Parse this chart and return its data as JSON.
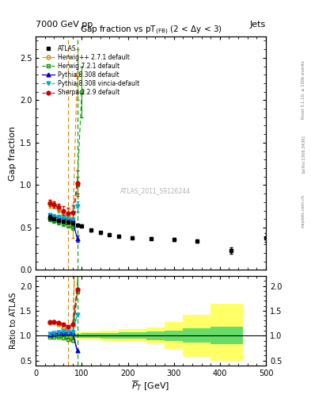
{
  "title": "Gap fraction vs pT",
  "header_left": "7000 GeV pp",
  "header_right": "Jets",
  "ylabel_main": "Gap fraction",
  "ylabel_ratio": "Ratio to ATLAS",
  "xlabel": "$\\overline{P}_T$ [GeV]",
  "watermark": "ATLAS_2011_S9126244",
  "rivet_text": "Rivet 3.1.10, ≥ 100k events",
  "arxiv_text": "[arXiv:1306.3436]",
  "mcplots_text": "mcplots.cern.ch",
  "atlas_x": [
    30,
    40,
    50,
    60,
    70,
    80,
    90,
    100,
    120,
    140,
    160,
    180,
    210,
    250,
    300,
    350,
    425,
    500
  ],
  "atlas_y": [
    0.62,
    0.6,
    0.585,
    0.57,
    0.565,
    0.555,
    0.53,
    0.52,
    0.47,
    0.44,
    0.42,
    0.4,
    0.38,
    0.37,
    0.36,
    0.34,
    0.23,
    0.38
  ],
  "atlas_yerr": [
    0.025,
    0.02,
    0.02,
    0.015,
    0.015,
    0.015,
    0.015,
    0.015,
    0.015,
    0.015,
    0.015,
    0.015,
    0.015,
    0.015,
    0.015,
    0.015,
    0.04,
    0.05
  ],
  "herwig271_x": [
    30,
    40,
    50,
    60,
    70,
    80,
    90
  ],
  "herwig271_y": [
    0.78,
    0.77,
    0.72,
    0.65,
    0.63,
    0.5,
    2.3
  ],
  "herwig271_yerr": [
    0.05,
    0.04,
    0.04,
    0.04,
    0.08,
    0.12,
    0.3
  ],
  "herwig271_color": "#cc8800",
  "herwig721_x": [
    30,
    40,
    50,
    60,
    70,
    80,
    90,
    100
  ],
  "herwig721_y": [
    0.605,
    0.585,
    0.565,
    0.545,
    0.525,
    0.505,
    1.0,
    2.1
  ],
  "herwig721_yerr": [
    0.03,
    0.03,
    0.03,
    0.03,
    0.03,
    0.03,
    0.1,
    0.3
  ],
  "herwig721_color": "#009900",
  "pythia8308_x": [
    30,
    40,
    50,
    60,
    70,
    80,
    90
  ],
  "pythia8308_y": [
    0.635,
    0.625,
    0.615,
    0.605,
    0.595,
    0.59,
    0.37
  ],
  "pythia8308_yerr": [
    0.02,
    0.02,
    0.02,
    0.02,
    0.02,
    0.02,
    0.04
  ],
  "pythia8308_color": "#0000cc",
  "pythia8308v_x": [
    30,
    40,
    50,
    60,
    70,
    80,
    90
  ],
  "pythia8308v_y": [
    0.645,
    0.635,
    0.625,
    0.615,
    0.605,
    0.595,
    0.75
  ],
  "pythia8308v_yerr": [
    0.02,
    0.02,
    0.02,
    0.02,
    0.02,
    0.02,
    0.06
  ],
  "pythia8308v_color": "#00aacc",
  "sherpa229_x": [
    30,
    40,
    50,
    60,
    70,
    80,
    90
  ],
  "sherpa229_y": [
    0.79,
    0.77,
    0.74,
    0.7,
    0.67,
    0.68,
    1.02
  ],
  "sherpa229_yerr": [
    0.04,
    0.04,
    0.04,
    0.05,
    0.06,
    0.08,
    0.15
  ],
  "sherpa229_color": "#cc0000",
  "vline_herwig271": 70,
  "vline_herwig721": 90,
  "ratio_yellow_edges": [
    30,
    100,
    140,
    180,
    240,
    280,
    320,
    380,
    450
  ],
  "ratio_yellow_lo": [
    0.93,
    0.92,
    0.9,
    0.87,
    0.83,
    0.73,
    0.58,
    0.5,
    0.46
  ],
  "ratio_yellow_hi": [
    1.07,
    1.08,
    1.1,
    1.13,
    1.17,
    1.27,
    1.42,
    1.65,
    1.8
  ],
  "ratio_green_edges": [
    30,
    100,
    140,
    180,
    240,
    280,
    320,
    380,
    450
  ],
  "ratio_green_lo": [
    0.96,
    0.955,
    0.945,
    0.935,
    0.915,
    0.895,
    0.855,
    0.825,
    0.795
  ],
  "ratio_green_hi": [
    1.04,
    1.045,
    1.055,
    1.065,
    1.085,
    1.105,
    1.145,
    1.175,
    1.205
  ],
  "xlim": [
    0,
    500
  ],
  "ylim_main": [
    0,
    2.75
  ],
  "ylim_ratio": [
    0.4,
    2.2
  ],
  "fig_width": 3.93,
  "fig_height": 5.12,
  "fig_dpi": 100
}
